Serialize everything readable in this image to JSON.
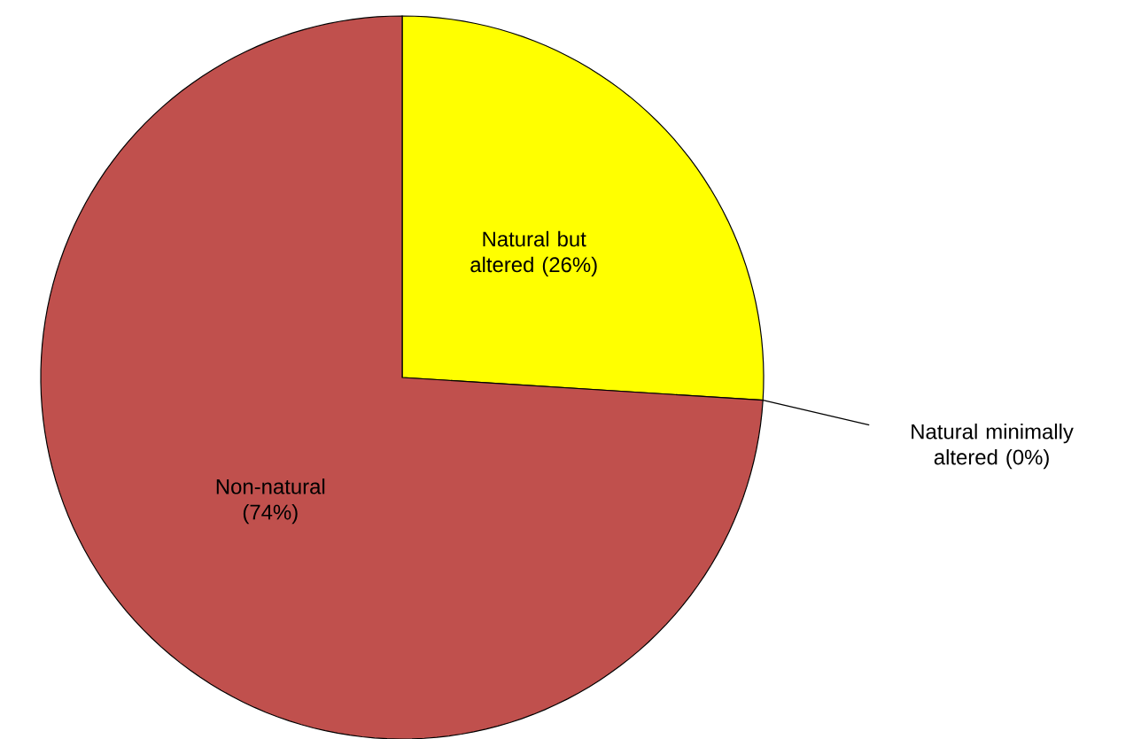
{
  "chart_data": {
    "type": "pie",
    "categories": [
      "Natural but altered",
      "Natural minimally altered",
      "Non-natural"
    ],
    "values": [
      26,
      0,
      74
    ],
    "value_labels": [
      "(26%)",
      "(0%)",
      "(74%)"
    ],
    "colors": [
      "#ffff00",
      "#9bbb59",
      "#c0504d"
    ]
  }
}
